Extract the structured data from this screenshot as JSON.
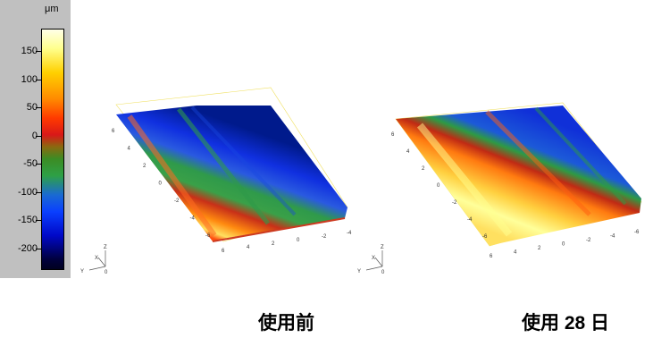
{
  "colorbar": {
    "unit": "μm",
    "ticks": [
      "150",
      "100",
      "50",
      "0",
      "-50",
      "-100",
      "-150",
      "-200"
    ]
  },
  "surfaces": [
    {
      "caption": "使用前",
      "y_ticks": [
        "6",
        "4",
        "2",
        "0",
        "-2",
        "-4",
        "-6"
      ],
      "x_ticks": [
        "6",
        "4",
        "2",
        "0",
        "-2",
        "-4"
      ]
    },
    {
      "caption": "使用 28 日",
      "y_ticks": [
        "6",
        "4",
        "2",
        "0",
        "-2",
        "-4",
        "-6"
      ],
      "x_ticks": [
        "6",
        "4",
        "2",
        "0",
        "-2",
        "-4",
        "-6"
      ]
    }
  ],
  "axis_triad": {
    "x": "X",
    "y": "Y",
    "z": "Z",
    "origin": "0"
  }
}
